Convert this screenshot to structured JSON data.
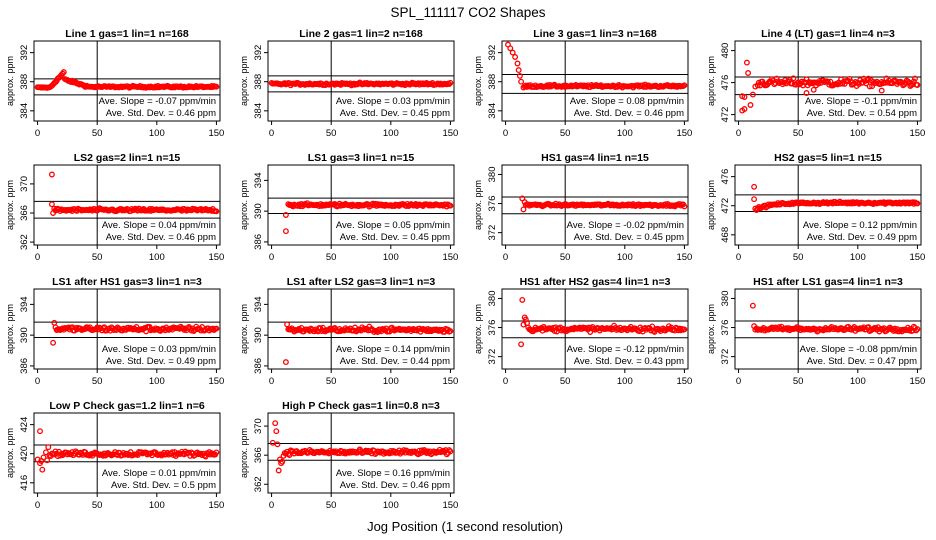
{
  "figure": {
    "title": "SPL_111117  CO2 Shapes",
    "xlabel": "Jog Position (1 second resolution)"
  },
  "colors": {
    "points": "#ff0000",
    "frame": "#000000"
  },
  "chart_data": [
    {
      "type": "scatter",
      "title": "Line 1 gas=1 lin=1 n=168",
      "ylabel": "approx. ppm",
      "xlim": [
        -3,
        153
      ],
      "ylim": [
        382.6,
        393.6
      ],
      "xticks": [
        0,
        50,
        100,
        150
      ],
      "yticks": [
        384,
        388,
        392
      ],
      "vline": 50,
      "hlines": [
        null,
        null
      ],
      "slope": "Ave. Slope = -0.07 ppm/min",
      "std": "Ave. Std. Dev. = 0.46 ppm",
      "shape": "line1",
      "level": 387.3,
      "noise": 0.12
    },
    {
      "type": "scatter",
      "title": "Line 2 gas=1 lin=2 n=168",
      "ylabel": "approx. ppm",
      "xlim": [
        -3,
        153
      ],
      "ylim": [
        382.6,
        393.6
      ],
      "xticks": [
        0,
        50,
        100,
        150
      ],
      "yticks": [
        384,
        388,
        392
      ],
      "vline": 50,
      "hlines": [
        null,
        null
      ],
      "slope": "Ave. Slope = 0.03 ppm/min",
      "std": "Ave. Std. Dev. = 0.45 ppm",
      "shape": "flat",
      "level": 387.7,
      "noise": 0.15
    },
    {
      "type": "scatter",
      "title": "Line 3 gas=1 lin=3 n=168",
      "ylabel": "approx. ppm",
      "xlim": [
        -3,
        153
      ],
      "ylim": [
        382.6,
        393.6
      ],
      "xticks": [
        0,
        50,
        100,
        150
      ],
      "yticks": [
        384,
        388,
        392
      ],
      "vline": 50,
      "hlines": [
        389.0,
        386.4
      ],
      "slope": "Ave. Slope = 0.08 ppm/min",
      "std": "Ave. Std. Dev. = 0.46 ppm",
      "shape": "line3",
      "level": 387.4,
      "noise": 0.15
    },
    {
      "type": "scatter",
      "title": "Line 4 (LT) gas=1 lin=4 n=3",
      "ylabel": "approx. ppm",
      "xlim": [
        -3,
        153
      ],
      "ylim": [
        471.2,
        481.2
      ],
      "xticks": [
        0,
        50,
        100,
        150
      ],
      "yticks": [
        472,
        476,
        480
      ],
      "vline": 50,
      "hlines": [
        476.7,
        474.5
      ],
      "slope": "Ave. Slope = -0.1 ppm/min",
      "std": "Ave. Std. Dev. = 0.54 ppm",
      "shape": "lt",
      "level": 476.0,
      "noise": 0.45
    },
    {
      "type": "scatter",
      "title": "LS2 gas=2 lin=1 n=15",
      "ylabel": "approx. ppm",
      "xlim": [
        -3,
        153
      ],
      "ylim": [
        361.6,
        372.6
      ],
      "xticks": [
        0,
        50,
        100,
        150
      ],
      "yticks": [
        362,
        366,
        370
      ],
      "vline": 50,
      "hlines": [
        367.6,
        365.3
      ],
      "slope": "Ave. Slope = 0.04 ppm/min",
      "std": "Ave. Std. Dev. = 0.46 ppm",
      "shape": "ls2",
      "level": 366.4,
      "noise": 0.2
    },
    {
      "type": "scatter",
      "title": "LS1 gas=3 lin=1 n=15",
      "ylabel": "approx. ppm",
      "xlim": [
        -3,
        153
      ],
      "ylim": [
        385.6,
        396.0
      ],
      "xticks": [
        0,
        50,
        100,
        150
      ],
      "yticks": [
        386,
        390,
        394
      ],
      "vline": 50,
      "hlines": [
        391.7,
        389.7
      ],
      "slope": "Ave. Slope = 0.05 ppm/min",
      "std": "Ave. Std. Dev. = 0.45 ppm",
      "shape": "ls1",
      "level": 390.8,
      "noise": 0.18
    },
    {
      "type": "scatter",
      "title": "HS1 gas=4 lin=1 n=15",
      "ylabel": "approx. ppm",
      "xlim": [
        -3,
        153
      ],
      "ylim": [
        370.3,
        381.3
      ],
      "xticks": [
        0,
        50,
        100,
        150
      ],
      "yticks": [
        372,
        376,
        380
      ],
      "vline": 50,
      "hlines": [
        376.9,
        374.6
      ],
      "slope": "Ave. Slope = -0.02 ppm/min",
      "std": "Ave. Std. Dev. = 0.45 ppm",
      "shape": "hs1",
      "level": 375.8,
      "noise": 0.15
    },
    {
      "type": "scatter",
      "title": "HS2 gas=5 lin=1 n=15",
      "ylabel": "approx. ppm",
      "xlim": [
        -3,
        153
      ],
      "ylim": [
        466.6,
        477.6
      ],
      "xticks": [
        0,
        50,
        100,
        150
      ],
      "yticks": [
        468,
        472,
        476
      ],
      "vline": 50,
      "hlines": [
        473.5,
        471.2
      ],
      "slope": "Ave. Slope = 0.12 ppm/min",
      "std": "Ave. Std. Dev. = 0.49 ppm",
      "shape": "hs2",
      "level": 472.4,
      "noise": 0.15
    },
    {
      "type": "scatter",
      "title": "LS1 after HS1 gas=3 lin=1 n=3",
      "ylabel": "approx. ppm",
      "xlim": [
        -3,
        153
      ],
      "ylim": [
        385.6,
        396.0
      ],
      "xticks": [
        0,
        50,
        100,
        150
      ],
      "yticks": [
        386,
        390,
        394
      ],
      "vline": 50,
      "hlines": [
        391.7,
        389.7
      ],
      "slope": "Ave. Slope = 0.03 ppm/min",
      "std": "Ave. Std. Dev. = 0.49 ppm",
      "shape": "after_ls1hs1",
      "level": 390.8,
      "noise": 0.3
    },
    {
      "type": "scatter",
      "title": "LS1 after LS2 gas=3 lin=1 n=3",
      "ylabel": "approx. ppm",
      "xlim": [
        -3,
        153
      ],
      "ylim": [
        385.6,
        396.0
      ],
      "xticks": [
        0,
        50,
        100,
        150
      ],
      "yticks": [
        386,
        390,
        394
      ],
      "vline": 50,
      "hlines": [
        391.7,
        389.7
      ],
      "slope": "Ave. Slope = 0.14 ppm/min",
      "std": "Ave. Std. Dev. = 0.44 ppm",
      "shape": "after_ls1ls2",
      "level": 390.7,
      "noise": 0.3
    },
    {
      "type": "scatter",
      "title": "HS1 after HS2 gas=4 lin=1 n=3",
      "ylabel": "approx. ppm",
      "xlim": [
        -3,
        153
      ],
      "ylim": [
        370.3,
        381.3
      ],
      "xticks": [
        0,
        50,
        100,
        150
      ],
      "yticks": [
        372,
        376,
        380
      ],
      "vline": 50,
      "hlines": [
        376.9,
        374.6
      ],
      "slope": "Ave. Slope = -0.12 ppm/min",
      "std": "Ave. Std. Dev. = 0.43 ppm",
      "shape": "after_hs1hs2",
      "level": 375.8,
      "noise": 0.3
    },
    {
      "type": "scatter",
      "title": "HS1 after LS1 gas=4 lin=1 n=3",
      "ylabel": "approx. ppm",
      "xlim": [
        -3,
        153
      ],
      "ylim": [
        370.3,
        381.3
      ],
      "xticks": [
        0,
        50,
        100,
        150
      ],
      "yticks": [
        372,
        376,
        380
      ],
      "vline": 50,
      "hlines": [
        376.9,
        374.6
      ],
      "slope": "Ave. Slope = -0.08 ppm/min",
      "std": "Ave. Std. Dev. = 0.47 ppm",
      "shape": "after_hs1ls1",
      "level": 375.8,
      "noise": 0.3
    },
    {
      "type": "scatter",
      "title": "Low P Check gas=1.2 lin=1 n=6",
      "ylabel": "approx. ppm",
      "xlim": [
        -3,
        153
      ],
      "ylim": [
        414.6,
        425.6
      ],
      "xticks": [
        0,
        50,
        100,
        150
      ],
      "yticks": [
        416,
        420,
        424
      ],
      "vline": 50,
      "hlines": [
        421.2,
        418.9
      ],
      "slope": "Ave. Slope = 0.01 ppm/min",
      "std": "Ave. Std. Dev. = 0.5 ppm",
      "shape": "lowp",
      "level": 420.0,
      "noise": 0.3
    },
    {
      "type": "scatter",
      "title": "High P Check gas=1 lin=0.8 n=3",
      "ylabel": "approx. ppm",
      "xlim": [
        -3,
        153
      ],
      "ylim": [
        360.8,
        371.8
      ],
      "xticks": [
        0,
        50,
        100,
        150
      ],
      "yticks": [
        362,
        366,
        370
      ],
      "vline": 50,
      "hlines": [
        367.6,
        365.3
      ],
      "slope": "Ave. Slope = 0.16 ppm/min",
      "std": "Ave. Std. Dev. = 0.46 ppm",
      "shape": "highp",
      "level": 366.4,
      "noise": 0.3
    }
  ]
}
